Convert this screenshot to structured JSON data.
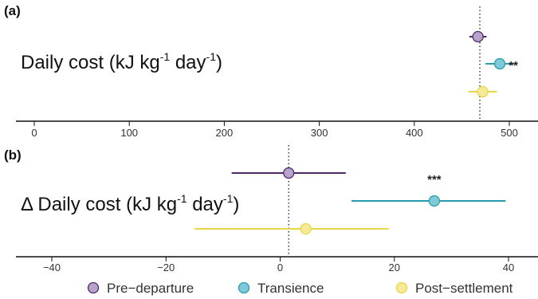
{
  "chart_data": [
    {
      "panel": "(a)",
      "type": "scatter",
      "ylabel": "Daily cost (kJ kg-1 day-1)",
      "ylabel_parts": {
        "main": "Daily cost (kJ kg",
        "sup1": "-1",
        "mid": " day",
        "sup2": "-1",
        "end": ")"
      },
      "xlim": [
        -25,
        540
      ],
      "xticks": [
        0,
        100,
        200,
        300,
        400,
        500
      ],
      "reference_line": 469,
      "series": [
        {
          "name": "Pre−departure",
          "value": 467,
          "ci": [
            458,
            476
          ],
          "color": "#b8a3cc",
          "stroke": "#4f2a6b"
        },
        {
          "name": "Transience",
          "value": 490,
          "ci": [
            475,
            505
          ],
          "color": "#7fcad8",
          "stroke": "#2a9aae",
          "sig": "**"
        },
        {
          "name": "Post−settlement",
          "value": 472,
          "ci": [
            457,
            487
          ],
          "color": "#f6ea98",
          "stroke": "#e8d646"
        }
      ]
    },
    {
      "panel": "(b)",
      "type": "scatter",
      "ylabel": "Δ Daily cost (kJ kg-1 day-1)",
      "ylabel_parts": {
        "main": "Δ Daily cost (kJ kg",
        "sup1": "-1",
        "mid": " day",
        "sup2": "-1",
        "end": ")"
      },
      "xlim": [
        -45,
        45
      ],
      "xticks": [
        -40,
        -20,
        0,
        20,
        40
      ],
      "reference_line": 1.5,
      "series": [
        {
          "name": "Pre−departure",
          "value": 1.5,
          "ci": [
            -8.5,
            11.5
          ],
          "color": "#b8a3cc",
          "stroke": "#4f2a6b"
        },
        {
          "name": "Transience",
          "value": 27,
          "ci": [
            12.5,
            39.5
          ],
          "color": "#7fcad8",
          "stroke": "#2a9aae",
          "sig": "***"
        },
        {
          "name": "Post−settlement",
          "value": 4.5,
          "ci": [
            -15,
            19
          ],
          "color": "#f6ea98",
          "stroke": "#e8d646"
        }
      ]
    }
  ],
  "legend": {
    "position": "bottom",
    "items": [
      {
        "label": "Pre−departure",
        "color": "#b8a3cc",
        "stroke": "#4f2a6b"
      },
      {
        "label": "Transience",
        "color": "#7fcad8",
        "stroke": "#2a9aae"
      },
      {
        "label": "Post−settlement",
        "color": "#f6ea98",
        "stroke": "#e8d646"
      }
    ]
  }
}
